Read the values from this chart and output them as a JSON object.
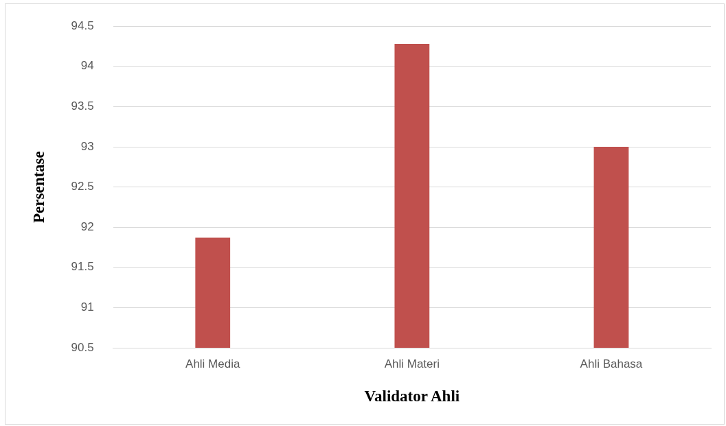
{
  "chart_data": {
    "type": "bar",
    "xlabel": "Validator Ahli",
    "ylabel": "Persentase",
    "categories": [
      "Ahli Media",
      "Ahli Materi",
      "Ahli Bahasa"
    ],
    "values": [
      91.87,
      94.28,
      93.0
    ],
    "color": "#c0504d",
    "ylim": [
      90.5,
      94.5
    ],
    "yticks": [
      90.5,
      91,
      91.5,
      92,
      92.5,
      93,
      93.5,
      94,
      94.5
    ],
    "grid": "y"
  }
}
